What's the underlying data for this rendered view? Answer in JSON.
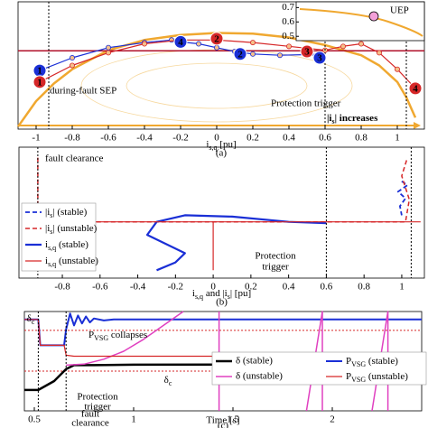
{
  "chart_data": [
    {
      "type": "line",
      "xlabel": [
        "i",
        "s,q",
        " [pu]"
      ],
      "panel_label": "(a)",
      "xlim": [
        -1.1,
        1.15
      ],
      "xticks": [
        -1,
        -0.8,
        -0.6,
        -0.4,
        -0.2,
        0,
        0.2,
        0.4,
        0.6,
        0.8,
        1
      ],
      "ylim": [
        -0.2,
        0.8
      ],
      "vlines": [
        -0.93,
        0.6,
        1.05
      ],
      "series": [
        {
          "color": "#f0a830",
          "width": 2.5,
          "x": [
            -1.1,
            -1.0,
            -0.9,
            -0.8,
            -0.6,
            -0.4,
            -0.2,
            0,
            0.2,
            0.4,
            0.6,
            0.8,
            0.9,
            1.0,
            1.05,
            1.1
          ],
          "values": [
            -0.18,
            0.02,
            0.16,
            0.27,
            0.42,
            0.5,
            0.54,
            0.555,
            0.55,
            0.52,
            0.46,
            0.38,
            0.3,
            0.17,
            0.05,
            -0.11
          ]
        },
        {
          "color": "#b0102a",
          "width": 1.5,
          "x": [
            -1.1,
            1.15
          ],
          "values": [
            0.415,
            0.415
          ]
        },
        {
          "color": "#1a2fd6",
          "width": 1.2,
          "marker": "circle",
          "x": [
            -0.98,
            -0.8,
            -0.6,
            -0.4,
            -0.25,
            -0.2,
            -0.1,
            0,
            0.1,
            0.2,
            0.35,
            0.5,
            0.55
          ],
          "values": [
            0.26,
            0.36,
            0.44,
            0.48,
            0.5,
            0.485,
            0.47,
            0.44,
            0.41,
            0.39,
            0.38,
            0.385,
            0.38
          ]
        },
        {
          "color": "#d62728",
          "width": 1.2,
          "marker": "circle",
          "x": [
            -0.98,
            -0.8,
            -0.6,
            -0.4,
            -0.2,
            0,
            0.2,
            0.4,
            0.6,
            0.7,
            0.8,
            0.9,
            1.0,
            1.1
          ],
          "values": [
            0.17,
            0.3,
            0.4,
            0.47,
            0.5,
            0.5,
            0.48,
            0.45,
            0.42,
            0.45,
            0.47,
            0.4,
            0.27,
            0.12
          ]
        }
      ],
      "markers": [
        {
          "label": "1",
          "x": -0.98,
          "y": 0.26,
          "color": "#1a2fd6"
        },
        {
          "label": "1",
          "x": -0.98,
          "y": 0.17,
          "color": "#d62728"
        },
        {
          "label": "4",
          "x": -0.2,
          "y": 0.485,
          "color": "#1a2fd6"
        },
        {
          "label": "2",
          "x": 0.0,
          "y": 0.51,
          "color": "#d62728"
        },
        {
          "label": "2",
          "x": 0.13,
          "y": 0.39,
          "color": "#1a2fd6"
        },
        {
          "label": "3",
          "x": 0.57,
          "y": 0.36,
          "color": "#1a2fd6"
        },
        {
          "label": "3",
          "x": 0.5,
          "y": 0.41,
          "color": "#d62728"
        },
        {
          "label": "4",
          "x": 1.1,
          "y": 0.12,
          "color": "#d62728"
        }
      ],
      "annotations": [
        "during-fault SEP",
        "Protection trigger",
        "UEP",
        [
          "|i",
          "s",
          "| increases"
        ]
      ],
      "inset": {
        "ylim": [
          0.47,
          0.74
        ],
        "yticks": [
          0.5,
          0.6,
          0.7
        ]
      }
    },
    {
      "type": "line",
      "xlabel": [
        "i",
        "s,q",
        " and |i",
        "s",
        "| [pu]"
      ],
      "panel_label": "(b)",
      "xlim": [
        -1.03,
        1.12
      ],
      "xticks": [
        -0.8,
        -0.6,
        -0.4,
        -0.2,
        0,
        0.2,
        0.4,
        0.6,
        0.8,
        1
      ],
      "ylim": [
        0,
        1
      ],
      "vlines": [
        -0.93,
        0.6,
        1.05
      ],
      "series": [
        {
          "name": [
            "|i",
            "s",
            "| (stable)"
          ],
          "color": "#1a2fd6",
          "dash": true,
          "width": 1.8,
          "x": [
            1.0,
            1.03,
            0.98,
            1.02,
            0.99,
            1.0
          ],
          "values": [
            0.74,
            0.71,
            0.66,
            0.61,
            0.55,
            0.48
          ]
        },
        {
          "name": [
            "|i",
            "s",
            "| (unstable)"
          ],
          "color": "#d62728",
          "dash": true,
          "width": 1.5,
          "x": [
            -0.93,
            -0.93,
            1.02,
            1.04,
            1.0,
            1.03
          ],
          "values": [
            0.92,
            0.43,
            0.43,
            0.6,
            0.78,
            0.92
          ]
        },
        {
          "name": [
            "i",
            "s,q",
            " (stable)"
          ],
          "color": "#1a2fd6",
          "width": 2.2,
          "x": [
            0.6,
            0.4,
            0.1,
            -0.15,
            -0.3,
            -0.35,
            -0.25,
            -0.15,
            -0.2,
            -0.3
          ],
          "values": [
            0.42,
            0.43,
            0.47,
            0.48,
            0.43,
            0.33,
            0.26,
            0.19,
            0.12,
            0.06
          ]
        },
        {
          "name": [
            "i",
            "s,q",
            " (unstable)"
          ],
          "color": "#d62728",
          "width": 1.2,
          "x": [
            -0.93,
            1.1,
            0,
            0,
            0
          ],
          "values": [
            0.43,
            0.43,
            null,
            0.43,
            0.06
          ]
        }
      ],
      "annotations": [
        "fault clearance",
        "Protection",
        "trigger"
      ]
    },
    {
      "type": "line",
      "xlabel": "Time [s]",
      "panel_label": "(c)",
      "xlim": [
        0.45,
        2.45
      ],
      "xticks": [
        0.5,
        1,
        1.5,
        2
      ],
      "ylim": [
        0,
        1
      ],
      "vlines": [
        0.52,
        0.66
      ],
      "hlines": [
        {
          "value": 0.81,
          "color": "#d62728"
        },
        {
          "value": 0.4,
          "color": "#d62728"
        }
      ],
      "series": [
        {
          "name": "δ (stable)",
          "color": "#000000",
          "width": 2.5,
          "x": [
            0.45,
            0.52,
            0.6,
            0.66,
            0.7,
            0.8,
            1.0,
            2.45
          ],
          "values": [
            0.21,
            0.21,
            0.3,
            0.42,
            0.46,
            0.46,
            0.465,
            0.47
          ]
        },
        {
          "name": [
            "P",
            "VSG",
            " (stable)"
          ],
          "color": "#1a2fd6",
          "width": 2,
          "x": [
            0.45,
            0.52,
            0.53,
            0.65,
            0.66,
            0.68,
            0.7,
            0.72,
            0.74,
            0.76,
            0.78,
            0.8,
            0.85,
            0.9,
            2.45
          ],
          "values": [
            0.92,
            0.92,
            0.66,
            0.66,
            0.82,
            0.98,
            0.86,
            0.96,
            0.88,
            0.95,
            0.89,
            0.93,
            0.91,
            0.92,
            0.92
          ]
        },
        {
          "name": "δ (unstable)",
          "color": "#e040c0",
          "width": 1.5,
          "x": [
            0.66,
            0.75,
            0.85,
            0.95,
            1.05,
            1.15,
            1.25,
            1.43,
            1.43,
            1.43,
            1.87,
            1.87,
            1.95,
            1.95,
            2.2,
            2.2,
            2.28,
            2.28
          ],
          "values": [
            0.46,
            0.47,
            0.52,
            0.6,
            0.72,
            0.86,
            1.0,
            null,
            0,
            1,
            null,
            0,
            1,
            0,
            null,
            0,
            1,
            0
          ]
        },
        {
          "name": [
            "P",
            "VSG",
            " (unstable)"
          ],
          "color": "#d62728",
          "width": 1.2,
          "x": [
            0.45,
            0.52,
            0.53,
            0.65,
            0.66,
            0.7,
            2.45
          ],
          "values": [
            0.92,
            0.92,
            0.66,
            0.66,
            0.56,
            0.55,
            0.55
          ]
        }
      ],
      "annotations": [
        [
          "δ",
          "c"
        ],
        [
          "P",
          "VSG",
          " collapses"
        ],
        [
          "δ",
          "c"
        ],
        "Protection",
        "trigger",
        "fault",
        "clearance"
      ]
    }
  ]
}
